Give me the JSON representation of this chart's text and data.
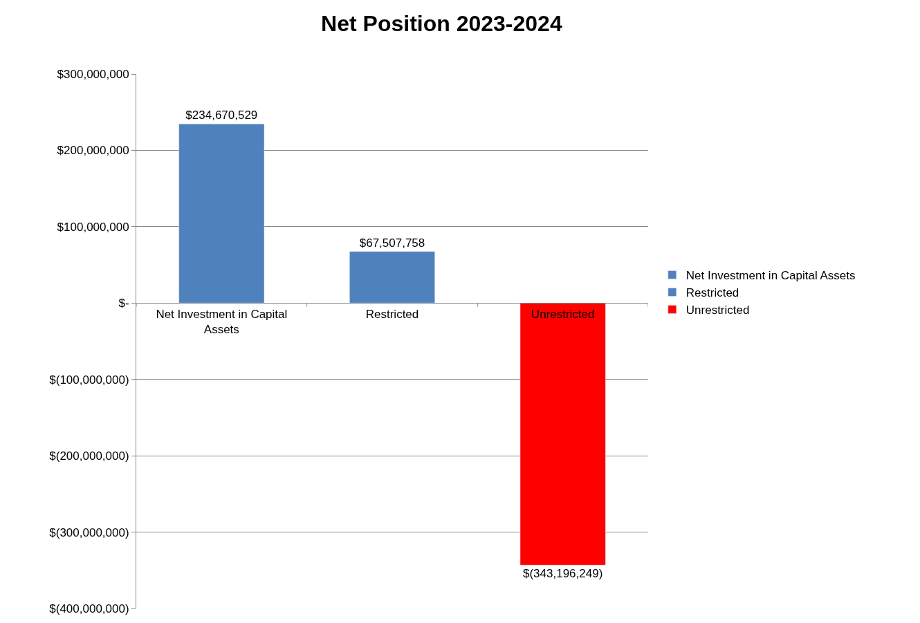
{
  "chart_data": {
    "type": "bar",
    "title": "Net Position 2023-2024",
    "categories": [
      "Net Investment in Capital Assets",
      "Restricted",
      "Unrestricted"
    ],
    "series": [
      {
        "name": "Net Investment in Capital Assets",
        "color": "#4f81bd",
        "values": [
          234670529,
          null,
          null
        ],
        "value_labels": [
          "$234,670,529",
          null,
          null
        ]
      },
      {
        "name": "Restricted",
        "color": "#4f81bd",
        "values": [
          null,
          67507758,
          null
        ],
        "value_labels": [
          null,
          "$67,507,758",
          null
        ]
      },
      {
        "name": "Unrestricted",
        "color": "#ff0000",
        "values": [
          null,
          null,
          -343196249
        ],
        "value_labels": [
          null,
          null,
          "$(343,196,249)"
        ]
      }
    ],
    "ylim": [
      -400000000,
      300000000
    ],
    "yticks": [
      {
        "value": 300000000,
        "label": "$300,000,000"
      },
      {
        "value": 200000000,
        "label": "$200,000,000"
      },
      {
        "value": 100000000,
        "label": "$100,000,000"
      },
      {
        "value": 0,
        "label": "$-"
      },
      {
        "value": -100000000,
        "label": "$(100,000,000)"
      },
      {
        "value": -200000000,
        "label": "$(200,000,000)"
      },
      {
        "value": -300000000,
        "label": "$(300,000,000)"
      },
      {
        "value": -400000000,
        "label": "$(400,000,000)"
      }
    ],
    "grid": "y",
    "legend": "right"
  }
}
